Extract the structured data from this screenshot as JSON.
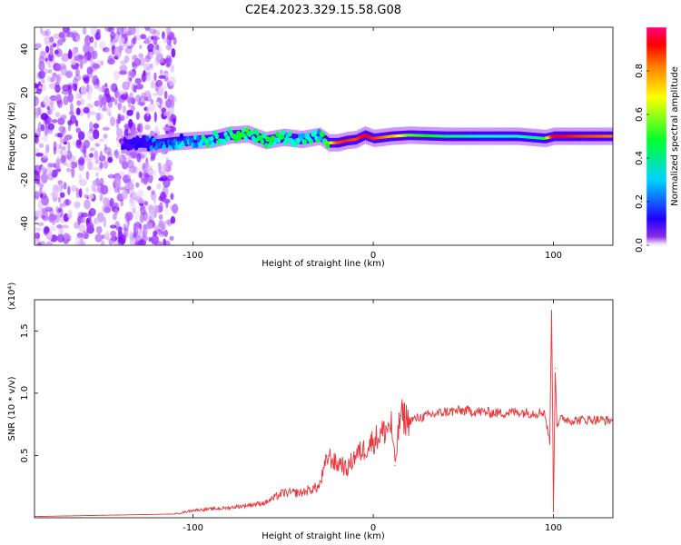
{
  "title": "C2E4.2023.329.15.58.G08",
  "chart_data": [
    {
      "type": "heatmap",
      "xlabel": "Height of straight line (km)",
      "ylabel": "Frequency (Hz)",
      "xlim": [
        -188,
        133
      ],
      "ylim": [
        -50,
        50
      ],
      "xticks": [
        -100,
        0,
        100
      ],
      "xtick_labels": [
        "-100",
        "0",
        "100"
      ],
      "yticks": [
        -40,
        -20,
        0,
        20,
        40
      ],
      "ytick_labels": [
        "-40",
        "-20",
        "0",
        "20",
        "40"
      ],
      "colorbar": {
        "label": "Normalized spectral amplitude",
        "range": [
          0,
          1
        ],
        "ticks": [
          0.0,
          0.2,
          0.4,
          0.6,
          0.8
        ],
        "tick_labels": [
          "0.0",
          "0.2",
          "0.4",
          "0.6",
          "0.8"
        ],
        "colors": [
          "#ffffff",
          "#8000ff",
          "#0000ff",
          "#00ffff",
          "#00ff00",
          "#ffff00",
          "#ff8000",
          "#ff0000",
          "#ff0080"
        ]
      },
      "ridge": [
        {
          "x": -140,
          "freq": -4.0,
          "amp": 0.15
        },
        {
          "x": -130,
          "freq": -3.0,
          "amp": 0.22
        },
        {
          "x": -120,
          "freq": -3.5,
          "amp": 0.28
        },
        {
          "x": -110,
          "freq": -2.5,
          "amp": 0.3
        },
        {
          "x": -100,
          "freq": -2.0,
          "amp": 0.35
        },
        {
          "x": -90,
          "freq": -1.5,
          "amp": 0.4
        },
        {
          "x": -80,
          "freq": 0.5,
          "amp": 0.45
        },
        {
          "x": -70,
          "freq": 1.0,
          "amp": 0.45
        },
        {
          "x": -60,
          "freq": -2.0,
          "amp": 0.45
        },
        {
          "x": -50,
          "freq": -0.5,
          "amp": 0.42
        },
        {
          "x": -40,
          "freq": -1.5,
          "amp": 0.4
        },
        {
          "x": -30,
          "freq": 0.0,
          "amp": 0.38
        },
        {
          "x": -25,
          "freq": -3.0,
          "amp": 0.5
        },
        {
          "x": -20,
          "freq": -3.0,
          "amp": 0.8
        },
        {
          "x": -15,
          "freq": -2.0,
          "amp": 0.85
        },
        {
          "x": -10,
          "freq": -1.5,
          "amp": 0.8
        },
        {
          "x": -5,
          "freq": 0.5,
          "amp": 0.9
        },
        {
          "x": 0,
          "freq": -1.0,
          "amp": 0.85
        },
        {
          "x": 10,
          "freq": 0.0,
          "amp": 0.7
        },
        {
          "x": 20,
          "freq": 0.5,
          "amp": 0.55
        },
        {
          "x": 40,
          "freq": 0.0,
          "amp": 0.45
        },
        {
          "x": 60,
          "freq": 0.0,
          "amp": 0.4
        },
        {
          "x": 80,
          "freq": 0.0,
          "amp": 0.4
        },
        {
          "x": 95,
          "freq": -1.0,
          "amp": 0.45
        },
        {
          "x": 100,
          "freq": 0.0,
          "amp": 0.9
        },
        {
          "x": 110,
          "freq": 0.0,
          "amp": 0.85
        },
        {
          "x": 120,
          "freq": 0.0,
          "amp": 0.8
        },
        {
          "x": 133,
          "freq": 0.0,
          "amp": 0.75
        }
      ]
    },
    {
      "type": "line",
      "xlabel": "Height of straight line (km)",
      "ylabel": "SNR (10 * v/v)",
      "y_multiplier": "(x10⁴)",
      "xlim": [
        -188,
        133
      ],
      "ylim": [
        0,
        1.75
      ],
      "xticks": [
        -100,
        0,
        100
      ],
      "xtick_labels": [
        "-100",
        "0",
        "100"
      ],
      "yticks": [
        0.5,
        1.0,
        1.5
      ],
      "ytick_labels": [
        "0.5",
        "1.0",
        "1.5"
      ],
      "series": [
        {
          "color": "#e8363a",
          "x": [
            -188,
            -150,
            -110,
            -100,
            -90,
            -80,
            -60,
            -50,
            -40,
            -30,
            -25,
            -20,
            -18,
            -15,
            -10,
            -5,
            0,
            5,
            10,
            12,
            15,
            20,
            30,
            40,
            50,
            60,
            70,
            80,
            90,
            95,
            98,
            99,
            100,
            101,
            102,
            105,
            110,
            120,
            133
          ],
          "y": [
            0.01,
            0.02,
            0.03,
            0.06,
            0.07,
            0.08,
            0.12,
            0.2,
            0.2,
            0.25,
            0.5,
            0.42,
            0.45,
            0.38,
            0.5,
            0.55,
            0.62,
            0.68,
            0.75,
            0.42,
            0.82,
            0.78,
            0.82,
            0.85,
            0.86,
            0.85,
            0.84,
            0.85,
            0.84,
            0.85,
            0.6,
            1.75,
            0.05,
            1.2,
            0.75,
            0.8,
            0.78,
            0.79,
            0.78
          ]
        }
      ]
    }
  ]
}
